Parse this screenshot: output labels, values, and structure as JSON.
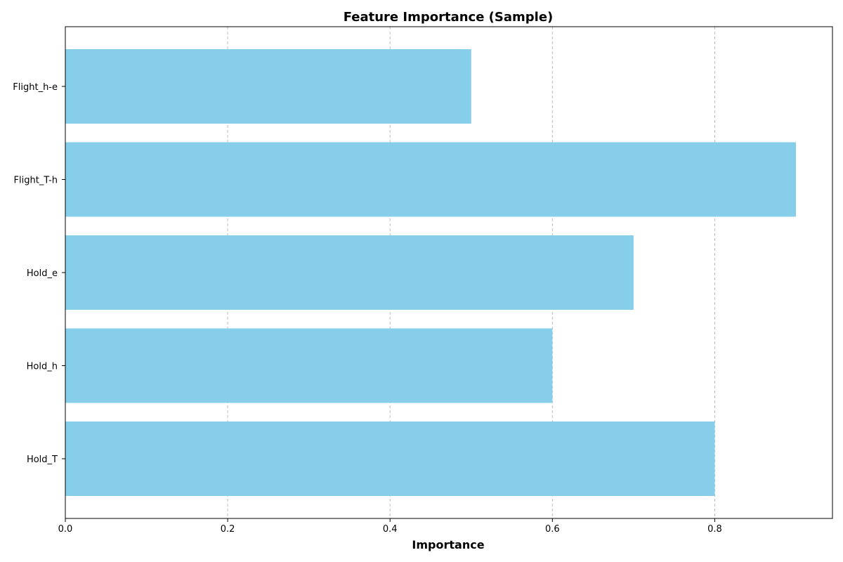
{
  "chart_data": {
    "type": "bar",
    "orientation": "horizontal",
    "title": "Feature Importance (Sample)",
    "xlabel": "Importance",
    "ylabel": "",
    "categories": [
      "Hold_T",
      "Hold_h",
      "Hold_e",
      "Flight_T-h",
      "Flight_h-e"
    ],
    "values": [
      0.8,
      0.6,
      0.7,
      0.9,
      0.5
    ],
    "xlim": [
      0.0,
      0.945
    ],
    "xticks": [
      0.0,
      0.2,
      0.4,
      0.6,
      0.8
    ],
    "xtick_labels": [
      "0.0",
      "0.2",
      "0.4",
      "0.6",
      "0.8"
    ],
    "grid": "x-axis dashed",
    "legend": "none",
    "bar_color": "#87CEEB",
    "grid_color": "#bbbbbb"
  }
}
